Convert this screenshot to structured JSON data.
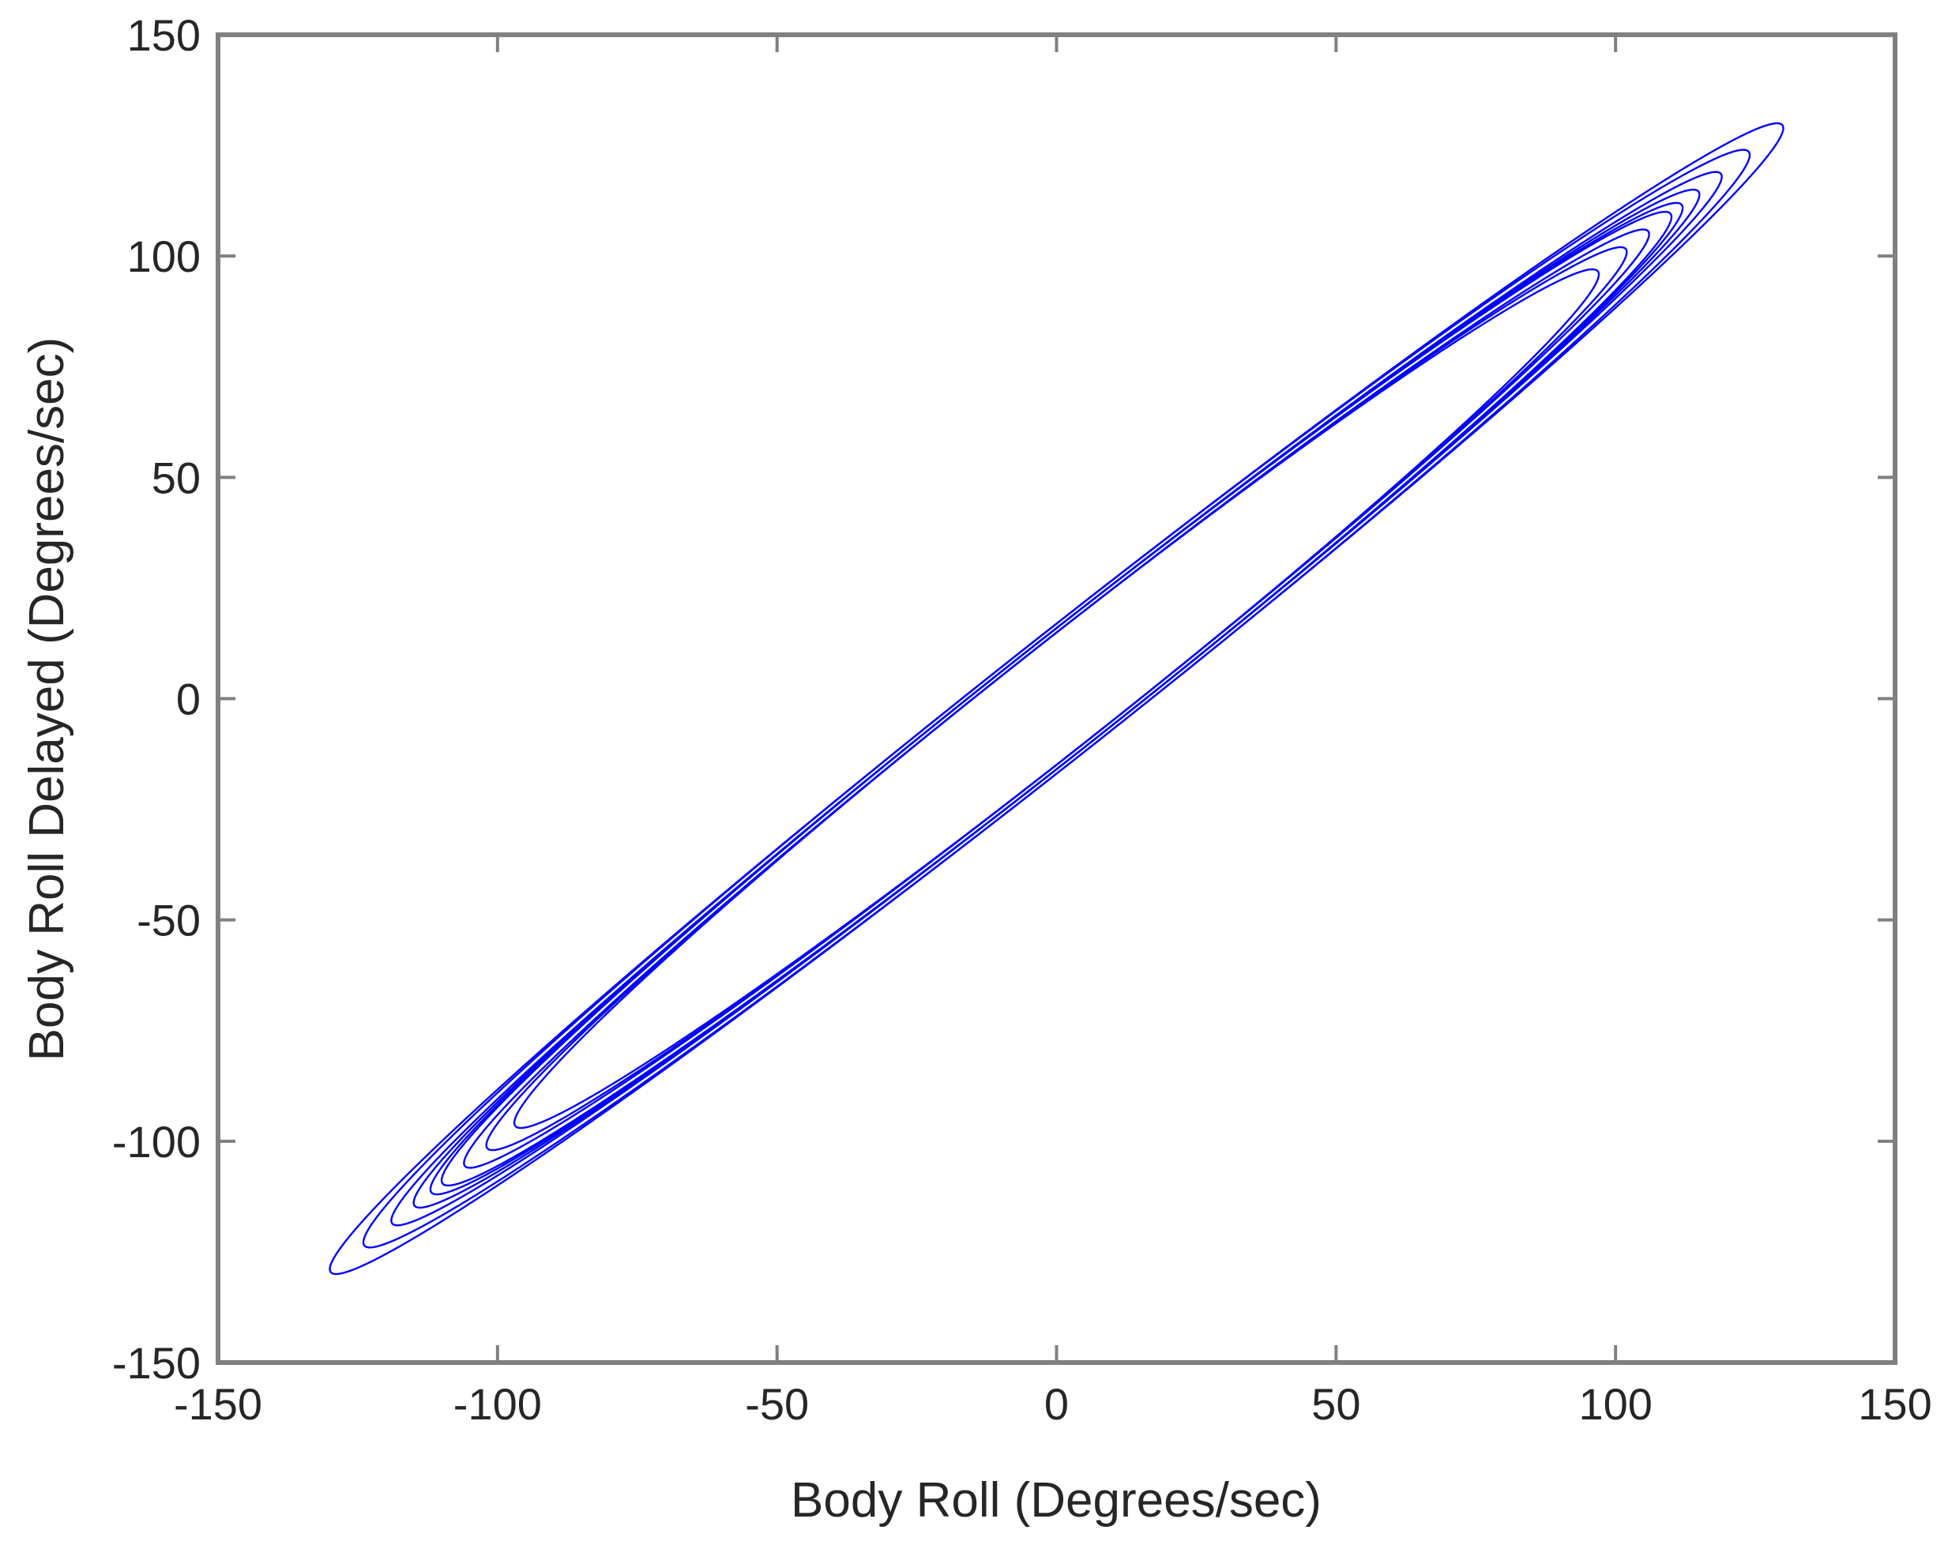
{
  "chart_data": {
    "type": "line",
    "title": "",
    "xlabel": "Body Roll (Degrees/sec)",
    "ylabel": "Body Roll Delayed (Degrees/sec)",
    "xlim": [
      -150,
      150
    ],
    "ylim": [
      -150,
      150
    ],
    "xticks": [
      -150,
      -100,
      -50,
      0,
      50,
      100,
      150
    ],
    "yticks": [
      -150,
      -100,
      -50,
      0,
      50,
      100,
      150
    ],
    "grid": false,
    "legend": "none",
    "line_color": "#0000ff",
    "series": [
      {
        "trajectory_loops": [
          {
            "amplitude": 130,
            "delay_offset": 17
          },
          {
            "amplitude": 124,
            "delay_offset": 17
          },
          {
            "amplitude": 119,
            "delay_offset": 16
          },
          {
            "amplitude": 115,
            "delay_offset": 16
          },
          {
            "amplitude": 112,
            "delay_offset": 16
          },
          {
            "amplitude": 110,
            "delay_offset": 16
          },
          {
            "amplitude": 106,
            "delay_offset": 15
          },
          {
            "amplitude": 102,
            "delay_offset": 15
          },
          {
            "amplitude": 97,
            "delay_offset": 15
          }
        ]
      }
    ]
  }
}
